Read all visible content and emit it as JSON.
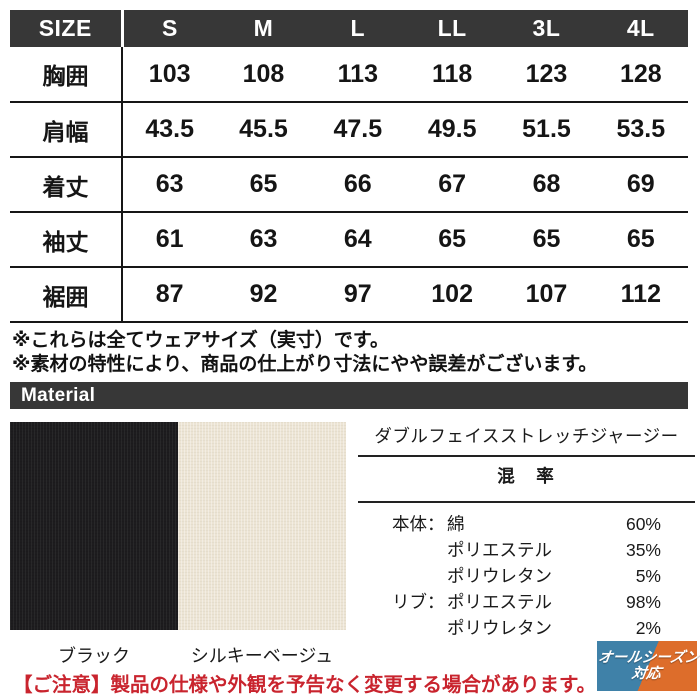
{
  "size_table": {
    "header": [
      "SIZE",
      "S",
      "M",
      "L",
      "LL",
      "3L",
      "4L"
    ],
    "rows": [
      {
        "label": "胸囲",
        "values": [
          "103",
          "108",
          "113",
          "118",
          "123",
          "128"
        ]
      },
      {
        "label": "肩幅",
        "values": [
          "43.5",
          "45.5",
          "47.5",
          "49.5",
          "51.5",
          "53.5"
        ]
      },
      {
        "label": "着丈",
        "values": [
          "63",
          "65",
          "66",
          "67",
          "68",
          "69"
        ]
      },
      {
        "label": "袖丈",
        "values": [
          "61",
          "63",
          "64",
          "65",
          "65",
          "65"
        ]
      },
      {
        "label": "裾囲",
        "values": [
          "87",
          "92",
          "97",
          "102",
          "107",
          "112"
        ]
      }
    ]
  },
  "notes": {
    "line1": "※これらは全てウェアサイズ（実寸）です。",
    "line2": "※素材の特性により、商品の仕上がり寸法にやや誤差がございます。"
  },
  "material": {
    "section_label": "Material",
    "fabric_name": "ダブルフェイスストレッチジャージー",
    "composition_header": "混　率",
    "composition": [
      {
        "prefix": "本体：",
        "name": "綿",
        "percent": "60%"
      },
      {
        "prefix": "",
        "name": "ポリエステル",
        "percent": "35%"
      },
      {
        "prefix": "",
        "name": "ポリウレタン",
        "percent": "5%"
      },
      {
        "prefix": "リブ：",
        "name": "ポリエステル",
        "percent": "98%"
      },
      {
        "prefix": "",
        "name": "ポリウレタン",
        "percent": "2%"
      }
    ],
    "swatches": [
      {
        "name": "ブラック",
        "color": "#1d1c1e"
      },
      {
        "name": "シルキーベージュ",
        "color": "#ece4d4"
      }
    ]
  },
  "notice": "【ご注意】製品の仕様や外観を予告なく変更する場合があります。",
  "badge": {
    "line1": "オールシーズン",
    "line2": "対応",
    "blue": "#3f81a8",
    "orange": "#dd6d2b"
  },
  "colors": {
    "header_bg": "#373737",
    "notice_red": "#c9242e",
    "table_line": "#161616"
  }
}
